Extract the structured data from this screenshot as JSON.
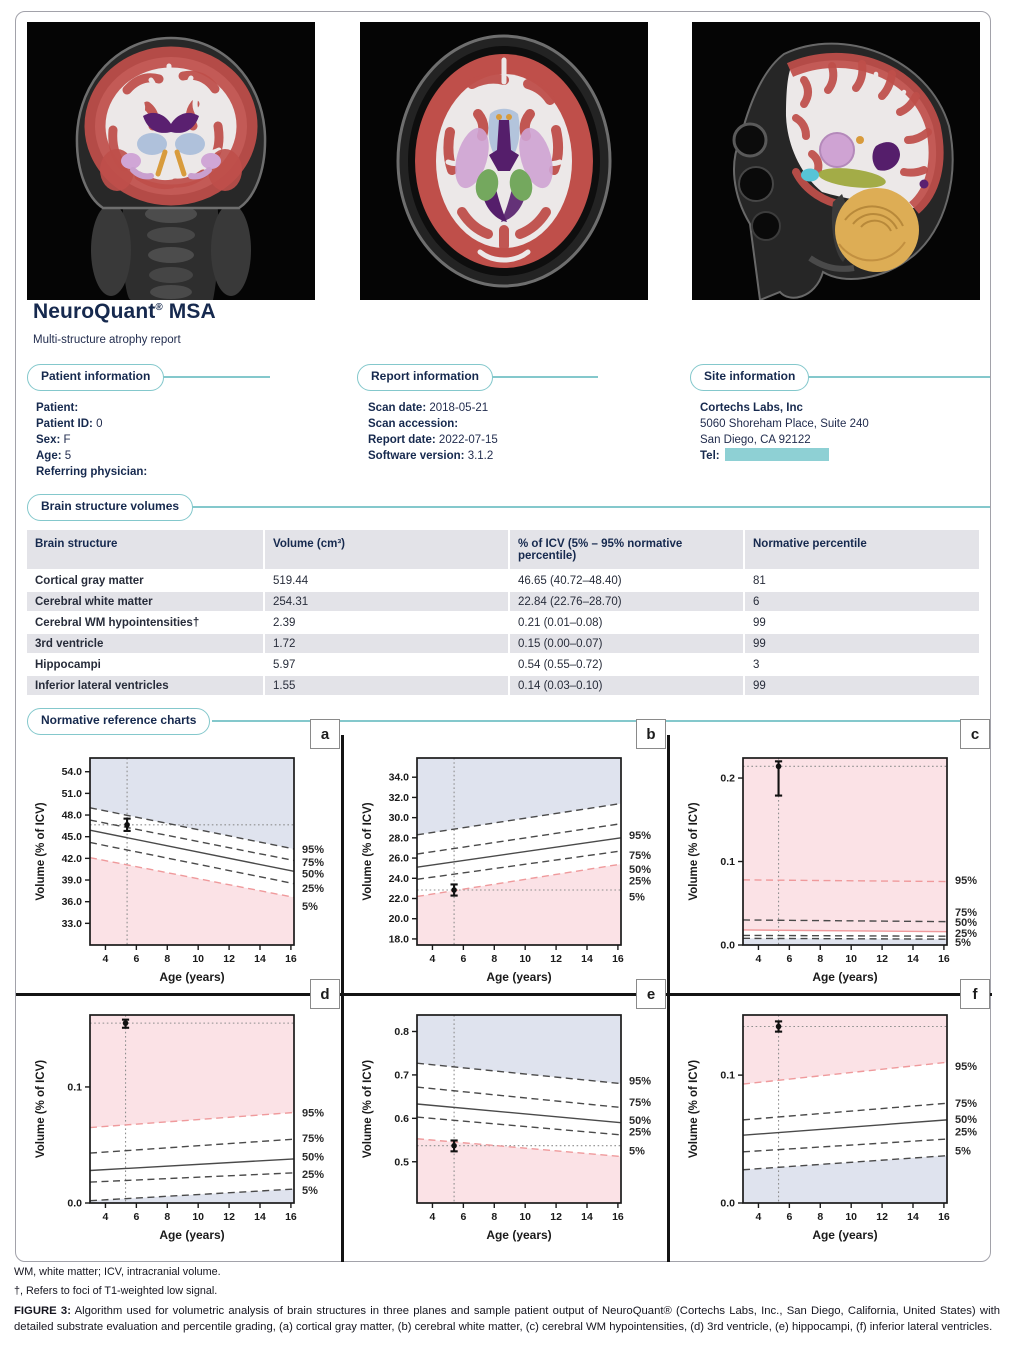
{
  "header": {
    "brand": "NeuroQuant",
    "reg": "®",
    "product": " MSA",
    "subtitle": "Multi-structure atrophy report"
  },
  "sections": {
    "patient": {
      "title": "Patient information",
      "fields": [
        {
          "label": "Patient:",
          "value": ""
        },
        {
          "label": "Patient ID:",
          "value": "0"
        },
        {
          "label": "Sex:",
          "value": "F"
        },
        {
          "label": "Age:",
          "value": "5"
        },
        {
          "label": "Referring physician:",
          "value": ""
        }
      ]
    },
    "report": {
      "title": "Report information",
      "fields": [
        {
          "label": "Scan date:",
          "value": "2018-05-21"
        },
        {
          "label": "Scan accession:",
          "value": ""
        },
        {
          "label": "Report date:",
          "value": "2022-07-15"
        },
        {
          "label": "Software version:",
          "value": "3.1.2"
        }
      ]
    },
    "site": {
      "title": "Site information",
      "name": "Cortechs Labs, Inc",
      "address1": "5060 Shoreham Place, Suite 240",
      "address2": "San Diego, CA 92122",
      "tel_label": "Tel:"
    }
  },
  "volumes": {
    "title": "Brain structure volumes",
    "columns": [
      "Brain structure",
      "Volume (cm³)",
      "% of ICV (5% – 95% normative percentile)",
      "Normative percentile"
    ],
    "rows": [
      {
        "structure": "Cortical gray matter",
        "volume": "519.44",
        "pct_icv": "46.65 (40.72–48.40)",
        "percentile": "81",
        "abnormal": false
      },
      {
        "structure": "Cerebral white matter",
        "volume": "254.31",
        "pct_icv": "22.84 (22.76–28.70)",
        "percentile": "6",
        "abnormal": false
      },
      {
        "structure": "Cerebral WM hypointensities†",
        "volume": "2.39",
        "pct_icv": "0.21 (0.01–0.08)",
        "percentile": "99",
        "abnormal": true
      },
      {
        "structure": "3rd ventricle",
        "volume": "1.72",
        "pct_icv": "0.15 (0.00–0.07)",
        "percentile": "99",
        "abnormal": true
      },
      {
        "structure": "Hippocampi",
        "volume": "5.97",
        "pct_icv": "0.54 (0.55–0.72)",
        "percentile": "3",
        "abnormal": true
      },
      {
        "structure": "Inferior lateral ventricles",
        "volume": "1.55",
        "pct_icv": "0.14 (0.03–0.10)",
        "percentile": "99",
        "abnormal": true
      }
    ]
  },
  "charts_section_title": "Normative reference charts",
  "chart_data": [
    {
      "type": "line",
      "label": "a",
      "structure": "Cortical gray matter",
      "xlabel": "Age (years)",
      "ylabel": "Volume (% of ICV)",
      "xlim": [
        3,
        16.2
      ],
      "ylim": [
        30.0,
        55.9
      ],
      "xticks": [
        4,
        6,
        8,
        10,
        12,
        14,
        16
      ],
      "yticks": [
        33,
        36,
        39,
        42,
        45,
        48,
        51,
        54
      ],
      "ytick_labels": [
        "33.0",
        "36.0",
        "39.0",
        "42.0",
        "45.0",
        "48.0",
        "51.0",
        "54.0"
      ],
      "lines": [
        {
          "pct": "95%",
          "start": 49.0,
          "end": 43.3,
          "dash": true,
          "red": false
        },
        {
          "pct": "75%",
          "start": 47.3,
          "end": 41.7,
          "dash": true,
          "red": false
        },
        {
          "pct": "50%",
          "start": 45.9,
          "end": 40.2,
          "dash": false,
          "red": false
        },
        {
          "pct": "25%",
          "start": 44.2,
          "end": 38.5,
          "dash": true,
          "red": false
        },
        {
          "pct": "5%",
          "start": 42.1,
          "end": 36.6,
          "dash": true,
          "red": true
        }
      ],
      "label_values": [
        43.3,
        41.5,
        39.9,
        37.9,
        35.4
      ],
      "fill_above": {
        "boundary": 0,
        "color": "blue"
      },
      "fill_below": {
        "boundary": 4,
        "color": "pink"
      },
      "patient": {
        "age": 5.4,
        "value": 46.65,
        "err_lo": 0.85,
        "err_hi": 0.85
      },
      "right_labels": [
        "95%",
        "75%",
        "50%",
        "25%",
        "5%"
      ]
    },
    {
      "type": "line",
      "label": "b",
      "structure": "Cerebral white matter",
      "xlabel": "Age (years)",
      "ylabel": "Volume (% of ICV)",
      "xlim": [
        3,
        16.2
      ],
      "ylim": [
        17.4,
        35.9
      ],
      "xticks": [
        4,
        6,
        8,
        10,
        12,
        14,
        16
      ],
      "yticks": [
        18,
        20,
        22,
        24,
        26,
        28,
        30,
        32,
        34
      ],
      "ytick_labels": [
        "18.0",
        "20.0",
        "22.0",
        "24.0",
        "26.0",
        "28.0",
        "30.0",
        "32.0",
        "34.0"
      ],
      "lines": [
        {
          "pct": "95%",
          "start": 28.3,
          "end": 31.4,
          "dash": true,
          "red": false
        },
        {
          "pct": "75%",
          "start": 26.4,
          "end": 29.4,
          "dash": true,
          "red": false
        },
        {
          "pct": "50%",
          "start": 25.1,
          "end": 28.0,
          "dash": false,
          "red": false
        },
        {
          "pct": "25%",
          "start": 23.9,
          "end": 26.7,
          "dash": true,
          "red": false
        },
        {
          "pct": "5%",
          "start": 22.2,
          "end": 25.4,
          "dash": true,
          "red": true
        }
      ],
      "label_values": [
        28.3,
        26.3,
        24.9,
        23.8,
        22.2
      ],
      "fill_above": {
        "boundary": 0,
        "color": "blue"
      },
      "fill_below": {
        "boundary": 4,
        "color": "pink"
      },
      "patient": {
        "age": 5.4,
        "value": 22.84,
        "err_lo": 0.55,
        "err_hi": 0.55
      },
      "right_labels": [
        "95%",
        "75%",
        "50%",
        "25%",
        "5%"
      ]
    },
    {
      "type": "line",
      "label": "c",
      "structure": "Cerebral WM hypointensities",
      "xlabel": "Age (years)",
      "ylabel": "Volume (% of ICV)",
      "xlim": [
        3,
        16.2
      ],
      "ylim": [
        0,
        0.224
      ],
      "xticks": [
        4,
        6,
        8,
        10,
        12,
        14,
        16
      ],
      "yticks": [
        0,
        0.1,
        0.2
      ],
      "ytick_labels": [
        "0.0",
        "0.1",
        "0.2"
      ],
      "lines": [
        {
          "pct": "95%",
          "start": 0.078,
          "end": 0.076,
          "dash": true,
          "red": true
        },
        {
          "pct": "75%",
          "start": 0.03,
          "end": 0.028,
          "dash": true,
          "red": false
        },
        {
          "pct": "50%",
          "start": 0.018,
          "end": 0.016,
          "dash": false,
          "red": true
        },
        {
          "pct": "25%",
          "start": 0.0115,
          "end": 0.0105,
          "dash": true,
          "red": false
        },
        {
          "pct": "5%",
          "start": 0.008,
          "end": 0.007,
          "dash": true,
          "red": false
        }
      ],
      "label_values": [
        0.078,
        0.0395,
        0.0275,
        0.0145,
        0.0035
      ],
      "fill_above": {
        "boundary": 2,
        "color": "pink"
      },
      "fill_below": {
        "boundary": 4,
        "color": "blue"
      },
      "patient": {
        "age": 5.3,
        "value": 0.214,
        "err_lo": 0.035,
        "err_hi": 0.006
      },
      "right_labels": [
        "95%",
        "75%",
        "50%",
        "25%",
        "5%"
      ]
    },
    {
      "type": "line",
      "label": "d",
      "structure": "3rd ventricle",
      "xlabel": "Age (years)",
      "ylabel": "Volume (% of ICV)",
      "xlim": [
        3,
        16.2
      ],
      "ylim": [
        0,
        0.162
      ],
      "xticks": [
        4,
        6,
        8,
        10,
        12,
        14,
        16
      ],
      "yticks": [
        0,
        0.1
      ],
      "ytick_labels": [
        "0.0",
        "0.1"
      ],
      "lines": [
        {
          "pct": "95%",
          "start": 0.065,
          "end": 0.078,
          "dash": true,
          "red": true
        },
        {
          "pct": "75%",
          "start": 0.043,
          "end": 0.055,
          "dash": true,
          "red": false
        },
        {
          "pct": "50%",
          "start": 0.028,
          "end": 0.038,
          "dash": false,
          "red": false
        },
        {
          "pct": "25%",
          "start": 0.018,
          "end": 0.026,
          "dash": true,
          "red": false
        },
        {
          "pct": "5%",
          "start": 0.002,
          "end": 0.012,
          "dash": true,
          "red": false
        }
      ],
      "label_values": [
        0.078,
        0.056,
        0.04,
        0.025,
        0.011
      ],
      "fill_above": {
        "boundary": 0,
        "color": "pink"
      },
      "fill_below": {
        "boundary": 4,
        "color": "blue"
      },
      "patient": {
        "age": 5.3,
        "value": 0.155,
        "err_lo": 0.004,
        "err_hi": 0.003
      },
      "right_labels": [
        "95%",
        "75%",
        "50%",
        "25%",
        "5%"
      ]
    },
    {
      "type": "line",
      "label": "e",
      "structure": "Hippocampi",
      "xlabel": "Age (years)",
      "ylabel": "Volume (% of ICV)",
      "xlim": [
        3,
        16.2
      ],
      "ylim": [
        0.405,
        0.838
      ],
      "xticks": [
        4,
        6,
        8,
        10,
        12,
        14,
        16
      ],
      "yticks": [
        0.5,
        0.6,
        0.7,
        0.8
      ],
      "ytick_labels": [
        "0.5",
        "0.6",
        "0.7",
        "0.8"
      ],
      "lines": [
        {
          "pct": "95%",
          "start": 0.727,
          "end": 0.68,
          "dash": true,
          "red": false
        },
        {
          "pct": "75%",
          "start": 0.672,
          "end": 0.625,
          "dash": true,
          "red": false
        },
        {
          "pct": "50%",
          "start": 0.633,
          "end": 0.59,
          "dash": false,
          "red": false
        },
        {
          "pct": "25%",
          "start": 0.603,
          "end": 0.562,
          "dash": true,
          "red": false
        },
        {
          "pct": "5%",
          "start": 0.553,
          "end": 0.512,
          "dash": true,
          "red": true
        }
      ],
      "label_values": [
        0.687,
        0.638,
        0.596,
        0.57,
        0.526
      ],
      "fill_above": {
        "boundary": 0,
        "color": "blue"
      },
      "fill_below": {
        "boundary": 4,
        "color": "pink"
      },
      "patient": {
        "age": 5.4,
        "value": 0.537,
        "err_lo": 0.013,
        "err_hi": 0.012
      },
      "right_labels": [
        "95%",
        "75%",
        "50%",
        "25%",
        "5%"
      ]
    },
    {
      "type": "line",
      "label": "f",
      "structure": "Inferior lateral ventricles",
      "xlabel": "Age (years)",
      "ylabel": "Volume (% of ICV)",
      "xlim": [
        3,
        16.2
      ],
      "ylim": [
        0,
        0.147
      ],
      "xticks": [
        4,
        6,
        8,
        10,
        12,
        14,
        16
      ],
      "yticks": [
        0,
        0.1
      ],
      "ytick_labels": [
        "0.0",
        "0.1"
      ],
      "lines": [
        {
          "pct": "95%",
          "start": 0.093,
          "end": 0.11,
          "dash": true,
          "red": true
        },
        {
          "pct": "75%",
          "start": 0.065,
          "end": 0.078,
          "dash": true,
          "red": false
        },
        {
          "pct": "50%",
          "start": 0.053,
          "end": 0.065,
          "dash": false,
          "red": false
        },
        {
          "pct": "25%",
          "start": 0.04,
          "end": 0.05,
          "dash": true,
          "red": false
        },
        {
          "pct": "5%",
          "start": 0.026,
          "end": 0.037,
          "dash": true,
          "red": false
        }
      ],
      "label_values": [
        0.107,
        0.078,
        0.0655,
        0.056,
        0.041
      ],
      "fill_above": {
        "boundary": 0,
        "color": "pink"
      },
      "fill_below": {
        "boundary": 4,
        "color": "blue"
      },
      "patient": {
        "age": 5.3,
        "value": 0.138,
        "err_lo": 0.004,
        "err_hi": 0.004
      },
      "right_labels": [
        "95%",
        "75%",
        "50%",
        "25%",
        "5%"
      ]
    }
  ],
  "footnotes": [
    "WM, white matter; ICV, intracranial volume.",
    "†, Refers to foci of T1-weighted low signal."
  ],
  "figure_caption": {
    "prefix": "FIGURE 3:",
    "text": " Algorithm used for volumetric analysis of brain structures in three planes and sample patient output of NeuroQuant® (Cortechs Labs, Inc., San Diego, California, United States) with detailed substrate evaluation and percentile grading, (a) cortical gray matter, (b) cerebral white matter, (c) cerebral WM hypointensities, (d) 3rd ventricle, (e) hippocampi, (f) inferior lateral ventricles."
  },
  "colors": {
    "teal": "#84c8cc",
    "navy": "#16294e",
    "red_value": "#f2908f",
    "blue_region": "#dfe3ee",
    "pink_region": "#fbe2e6",
    "red_line": "#ef9a9c",
    "gray_line": "#4a4a4a"
  }
}
